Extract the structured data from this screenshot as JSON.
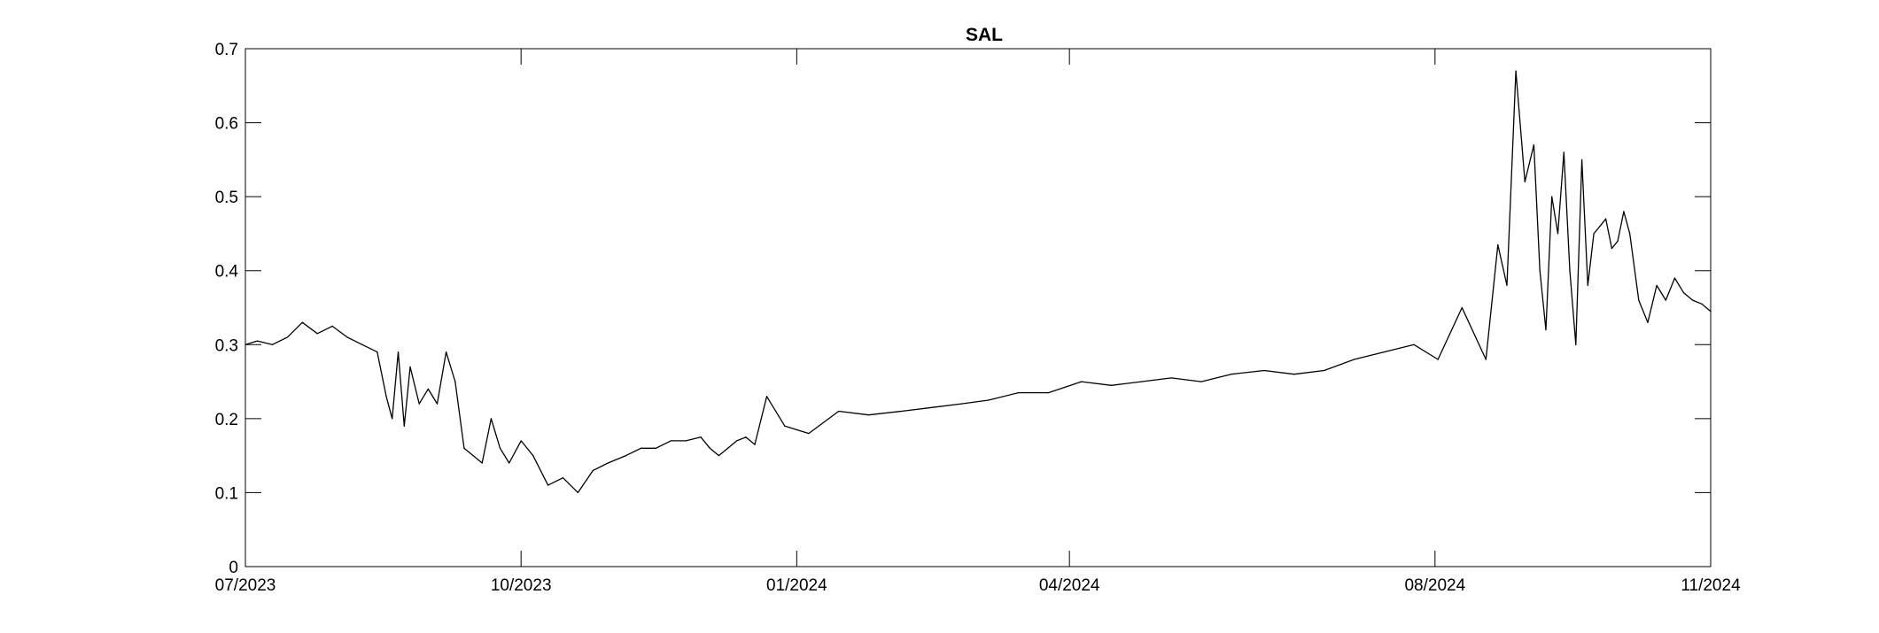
{
  "chart_data": {
    "type": "line",
    "title": "SAL",
    "xlabel": "",
    "ylabel": "",
    "xlim": [
      "2023-07-01",
      "2024-11-01"
    ],
    "ylim": [
      0,
      0.7
    ],
    "x_ticks": [
      "07/2023",
      "10/2023",
      "01/2024",
      "04/2024",
      "08/2024",
      "11/2024"
    ],
    "y_ticks": [
      "0",
      "0.1",
      "0.2",
      "0.3",
      "0.4",
      "0.5",
      "0.6",
      "0.7"
    ],
    "grid": false,
    "line_color": "#000000",
    "series": [
      {
        "x": [
          "2023-07-01",
          "2023-07-05",
          "2023-07-10",
          "2023-07-15",
          "2023-07-20",
          "2023-07-25",
          "2023-07-30",
          "2023-08-04",
          "2023-08-09",
          "2023-08-14",
          "2023-08-17",
          "2023-08-19",
          "2023-08-21",
          "2023-08-23",
          "2023-08-25",
          "2023-08-28",
          "2023-08-31",
          "2023-09-03",
          "2023-09-06",
          "2023-09-09",
          "2023-09-12",
          "2023-09-15",
          "2023-09-18",
          "2023-09-21",
          "2023-09-24",
          "2023-09-27",
          "2023-10-01",
          "2023-10-05",
          "2023-10-10",
          "2023-10-15",
          "2023-10-20",
          "2023-10-25",
          "2023-10-30",
          "2023-11-05",
          "2023-11-10",
          "2023-11-15",
          "2023-11-20",
          "2023-11-25",
          "2023-11-30",
          "2023-12-03",
          "2023-12-06",
          "2023-12-09",
          "2023-12-12",
          "2023-12-15",
          "2023-12-18",
          "2023-12-22",
          "2023-12-28",
          "2024-01-05",
          "2024-01-15",
          "2024-01-25",
          "2024-02-05",
          "2024-02-15",
          "2024-02-25",
          "2024-03-05",
          "2024-03-15",
          "2024-03-25",
          "2024-04-05",
          "2024-04-15",
          "2024-04-25",
          "2024-05-05",
          "2024-05-15",
          "2024-05-25",
          "2024-06-05",
          "2024-06-15",
          "2024-06-25",
          "2024-07-05",
          "2024-07-15",
          "2024-07-25",
          "2024-08-02",
          "2024-08-10",
          "2024-08-18",
          "2024-08-22",
          "2024-08-25",
          "2024-08-28",
          "2024-08-31",
          "2024-09-03",
          "2024-09-05",
          "2024-09-07",
          "2024-09-09",
          "2024-09-11",
          "2024-09-13",
          "2024-09-15",
          "2024-09-17",
          "2024-09-19",
          "2024-09-21",
          "2024-09-23",
          "2024-09-25",
          "2024-09-27",
          "2024-09-29",
          "2024-10-01",
          "2024-10-03",
          "2024-10-05",
          "2024-10-08",
          "2024-10-11",
          "2024-10-14",
          "2024-10-17",
          "2024-10-20",
          "2024-10-23",
          "2024-10-26",
          "2024-10-29",
          "2024-11-01"
        ],
        "values": [
          0.3,
          0.305,
          0.3,
          0.31,
          0.33,
          0.315,
          0.325,
          0.31,
          0.3,
          0.29,
          0.23,
          0.2,
          0.29,
          0.19,
          0.27,
          0.22,
          0.24,
          0.22,
          0.29,
          0.25,
          0.16,
          0.15,
          0.14,
          0.2,
          0.16,
          0.14,
          0.17,
          0.15,
          0.11,
          0.12,
          0.1,
          0.13,
          0.14,
          0.15,
          0.16,
          0.16,
          0.17,
          0.17,
          0.175,
          0.16,
          0.15,
          0.16,
          0.17,
          0.175,
          0.165,
          0.23,
          0.19,
          0.18,
          0.21,
          0.205,
          0.21,
          0.215,
          0.22,
          0.225,
          0.235,
          0.235,
          0.25,
          0.245,
          0.25,
          0.255,
          0.25,
          0.26,
          0.265,
          0.26,
          0.265,
          0.28,
          0.29,
          0.3,
          0.28,
          0.35,
          0.28,
          0.435,
          0.38,
          0.67,
          0.52,
          0.57,
          0.4,
          0.32,
          0.5,
          0.45,
          0.56,
          0.4,
          0.3,
          0.55,
          0.38,
          0.45,
          0.46,
          0.47,
          0.43,
          0.44,
          0.48,
          0.45,
          0.36,
          0.33,
          0.38,
          0.36,
          0.39,
          0.37,
          0.36,
          0.355,
          0.345
        ]
      }
    ]
  }
}
